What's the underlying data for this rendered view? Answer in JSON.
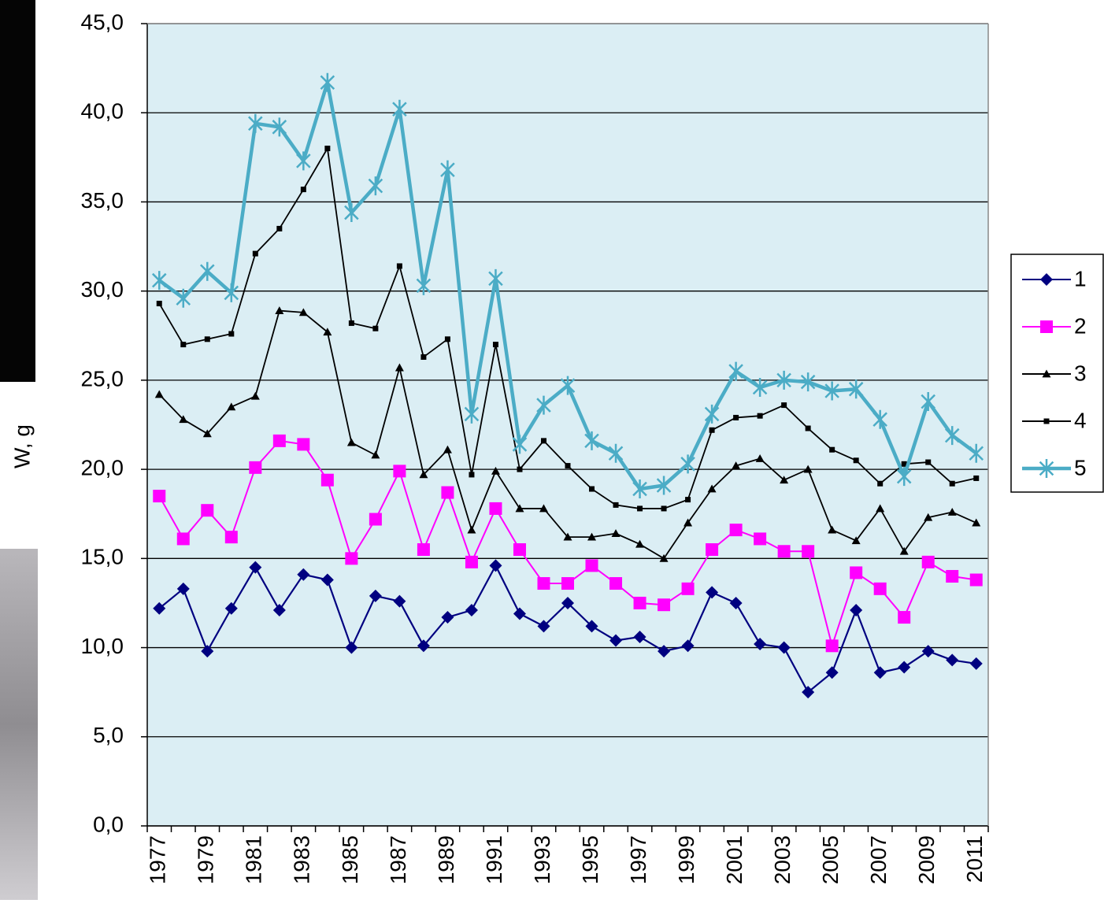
{
  "chart_data": {
    "type": "line",
    "y_label": "W, g",
    "categories": [
      "1977",
      null,
      "1979",
      null,
      "1981",
      null,
      "1983",
      null,
      "1985",
      null,
      "1987",
      null,
      "1989",
      null,
      "1991",
      null,
      "1993",
      null,
      "1995",
      null,
      "1997",
      null,
      "1999",
      null,
      "2001",
      null,
      "2003",
      null,
      "2005",
      null,
      "2007",
      null,
      "2009",
      null,
      "2011"
    ],
    "ylim": [
      0,
      45
    ],
    "yticks": [
      {
        "value": 0,
        "label": "0,0"
      },
      {
        "value": 5,
        "label": "5,0"
      },
      {
        "value": 10,
        "label": "10,0"
      },
      {
        "value": 15,
        "label": "15,0"
      },
      {
        "value": 20,
        "label": "20,0"
      },
      {
        "value": 25,
        "label": "25,0"
      },
      {
        "value": 30,
        "label": "30,0"
      },
      {
        "value": 35,
        "label": "35,0"
      },
      {
        "value": 40,
        "label": "40,0"
      },
      {
        "value": 45,
        "label": "45,0"
      }
    ],
    "grid": true,
    "legend": "right",
    "series": [
      {
        "name": "1",
        "color": "#000080",
        "marker": "diamond",
        "values": [
          12.2,
          13.3,
          9.8,
          12.2,
          14.5,
          12.1,
          14.1,
          13.8,
          10.0,
          12.9,
          12.6,
          10.1,
          11.7,
          12.1,
          14.6,
          11.9,
          11.2,
          12.5,
          11.2,
          10.4,
          10.6,
          9.8,
          10.1,
          13.1,
          12.5,
          10.2,
          10.0,
          7.5,
          8.6,
          12.1,
          8.6,
          8.9,
          9.8,
          9.3,
          9.1
        ]
      },
      {
        "name": "2",
        "color": "#ff00ff",
        "marker": "square",
        "values": [
          18.5,
          16.1,
          17.7,
          16.2,
          20.1,
          21.6,
          21.4,
          19.4,
          15.0,
          17.2,
          19.9,
          15.5,
          18.7,
          14.8,
          17.8,
          15.5,
          13.6,
          13.6,
          14.6,
          13.6,
          12.5,
          12.4,
          13.3,
          15.5,
          16.6,
          16.1,
          15.4,
          15.4,
          10.1,
          14.2,
          13.3,
          11.7,
          14.8,
          14.0,
          13.8
        ]
      },
      {
        "name": "3",
        "color": "#000000",
        "marker": "triangle",
        "values": [
          24.2,
          22.8,
          22.0,
          23.5,
          24.1,
          28.9,
          28.8,
          27.7,
          21.5,
          20.8,
          25.7,
          19.7,
          21.1,
          16.6,
          19.9,
          17.8,
          17.8,
          16.2,
          16.2,
          16.4,
          15.8,
          15.0,
          17.0,
          18.9,
          20.2,
          20.6,
          19.4,
          20.0,
          16.6,
          16.0,
          17.8,
          15.4,
          17.3,
          17.6,
          17.0
        ]
      },
      {
        "name": "4",
        "color": "#000000",
        "marker": "small-square",
        "values": [
          29.3,
          27.0,
          27.3,
          27.6,
          32.1,
          33.5,
          35.7,
          38.0,
          28.2,
          27.9,
          31.4,
          26.3,
          27.3,
          19.7,
          27.0,
          20.0,
          21.6,
          20.2,
          18.9,
          18.0,
          17.8,
          17.8,
          18.3,
          22.2,
          22.9,
          23.0,
          23.6,
          22.3,
          21.1,
          20.5,
          19.2,
          20.3,
          20.4,
          19.2,
          19.5
        ]
      },
      {
        "name": "5",
        "color": "#4bacc6",
        "marker": "asterisk",
        "values": [
          30.6,
          29.6,
          31.1,
          29.9,
          39.4,
          39.2,
          37.3,
          41.7,
          34.4,
          35.9,
          40.2,
          30.3,
          36.8,
          23.1,
          30.7,
          21.4,
          23.6,
          24.7,
          21.6,
          20.9,
          18.9,
          19.1,
          20.3,
          23.1,
          25.5,
          24.6,
          25.0,
          24.9,
          24.4,
          24.5,
          22.8,
          19.6,
          23.8,
          21.9,
          20.9
        ]
      }
    ]
  }
}
